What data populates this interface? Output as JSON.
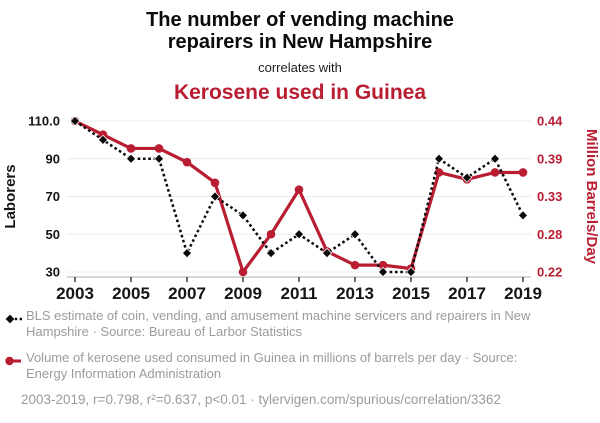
{
  "colors": {
    "accent_red": "#b91d32",
    "series_black": "#0a0a0a",
    "legend_gray": "#9b9b9b",
    "gridline": "#ececec",
    "axis_line": "#c9c9c9"
  },
  "chart_data": {
    "type": "line",
    "title_top": "The number of vending machine repairers in New Hampshire",
    "subtitle": "correlates with",
    "title_bottom": "Kerosene used in Guinea",
    "x": [
      2003,
      2004,
      2005,
      2006,
      2007,
      2008,
      2009,
      2010,
      2011,
      2012,
      2013,
      2014,
      2015,
      2016,
      2017,
      2018,
      2019
    ],
    "x_ticks": [
      2003,
      2005,
      2007,
      2009,
      2011,
      2013,
      2015,
      2017,
      2019
    ],
    "left_axis": {
      "label": "Laborers",
      "tick_labels": [
        "110.0",
        "90",
        "70",
        "50",
        "30"
      ],
      "min": 30,
      "max": 110
    },
    "right_axis": {
      "label": "Million Barrels/Day",
      "tick_labels": [
        "0.44",
        "0.39",
        "0.33",
        "0.28",
        "0.22"
      ],
      "min": 0.22,
      "max": 0.44
    },
    "grid": "horizontal",
    "legend_position": "bottom",
    "series": [
      {
        "name": "kerosene-used-in-guinea",
        "axis": "right",
        "color": "#b91d32",
        "marker": "circle",
        "line": "solid",
        "values": [
          0.44,
          0.42,
          0.4,
          0.4,
          0.38,
          0.35,
          0.22,
          0.275,
          0.34,
          0.25,
          0.23,
          0.23,
          0.225,
          0.365,
          0.355,
          0.365,
          0.365
        ]
      },
      {
        "name": "vending-machine-repairers-nh",
        "axis": "left",
        "color": "#0a0a0a",
        "marker": "diamond",
        "line": "dotted",
        "dash": "2.6 2.7",
        "values": [
          110,
          100,
          90,
          90,
          40,
          70,
          60,
          40,
          50,
          40,
          50,
          30,
          30,
          90,
          80,
          90,
          60
        ]
      }
    ]
  },
  "legend": {
    "rows": [
      {
        "text": "BLS estimate of coin, vending, and amusement machine servicers and repairers in New Hampshire · Source: Bureau of Larbor Statistics"
      },
      {
        "text": "Volume of kerosene used consumed in Guinea in millions of barrels per day · Source: Energy Information Administration"
      }
    ]
  },
  "footer": {
    "stats": "2003-2019, r=0.798, r²=0.637, p<0.01 · tylervigen.com/spurious/correlation/3362"
  }
}
